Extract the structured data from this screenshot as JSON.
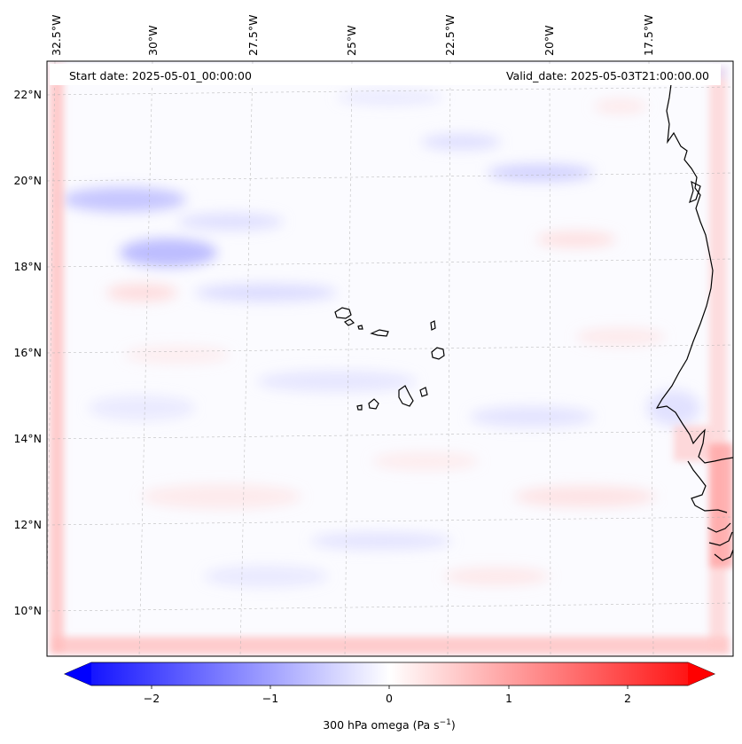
{
  "map": {
    "start_date": "Start date: 2025-05-01_00:00:00",
    "valid_date": "Valid_date: 2025-05-03T21:00:00.00",
    "lon_labels": [
      "32.5°W",
      "30°W",
      "27.5°W",
      "25°W",
      "22.5°W",
      "20°W",
      "17.5°W"
    ],
    "lat_labels": [
      "22°N",
      "20°N",
      "18°N",
      "16°N",
      "14°N",
      "12°N",
      "10°N"
    ],
    "colors": {
      "negative": "#0000ff",
      "neutral": "#ffffff",
      "positive": "#ff0000",
      "coast": "#000000",
      "grid": "#b0b0b0"
    }
  },
  "colorbar": {
    "ticks": [
      "−2",
      "−1",
      "0",
      "1",
      "2"
    ],
    "min": -2.6,
    "max": 2.6,
    "label_main": "300 hPa omega (Pa s",
    "label_sup": "−1",
    "label_end": ")"
  }
}
